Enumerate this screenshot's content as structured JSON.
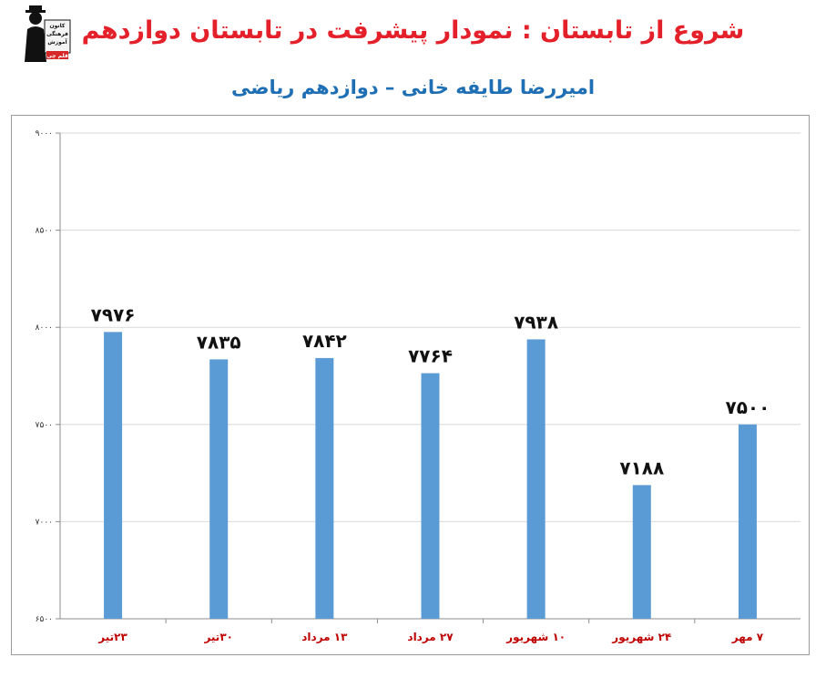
{
  "header": {
    "title": "شروع از تابستان : نمودار پیشرفت در تابستان دوازدهم",
    "subtitle": "امیررضا طایفه خانی – دوازدهم ریاضی",
    "logo_text": [
      "کانون",
      "فرهنگی",
      "آموزش",
      "قلم چی"
    ]
  },
  "colors": {
    "title": "#e4202a",
    "subtitle": "#1f6fb4",
    "bar": "#5b9bd5",
    "category_label": "#c00000",
    "grid": "#d9d9d9"
  },
  "chart_data": {
    "type": "bar",
    "title": "",
    "xlabel": "",
    "ylabel": "",
    "categories": [
      "۲۳تیر",
      "۳۰تیر",
      "۱۳ مرداد",
      "۲۷ مرداد",
      "۱۰ شهریور",
      "۲۴ شهریور",
      "۷ مهر"
    ],
    "values": [
      7976,
      7835,
      7842,
      7764,
      7938,
      7188,
      7500
    ],
    "value_labels": [
      "۷۹۷۶",
      "۷۸۳۵",
      "۷۸۴۲",
      "۷۷۶۴",
      "۷۹۳۸",
      "۷۱۸۸",
      "۷۵۰۰"
    ],
    "ylim": [
      6500,
      9000
    ],
    "yticks": [
      6500,
      7000,
      7500,
      8000,
      8500,
      9000
    ],
    "ytick_labels": [
      "۶۵۰۰",
      "۷۰۰۰",
      "۷۵۰۰",
      "۸۰۰۰",
      "۸۵۰۰",
      "۹۰۰۰"
    ],
    "grid": true,
    "legend": "none"
  }
}
